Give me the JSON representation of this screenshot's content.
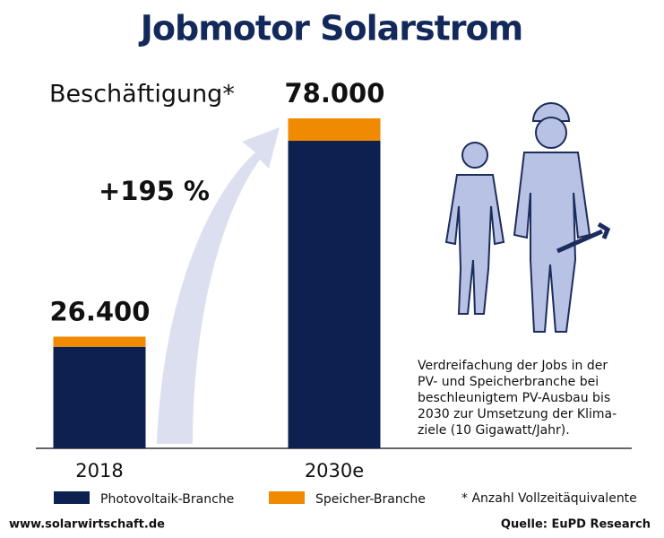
{
  "chart_data": {
    "type": "stacked-bar",
    "title": "Jobmotor Solarstrom",
    "subtitle": "Beschäftigung*",
    "annotation": "+195 %",
    "categories": [
      "2018",
      "2030e"
    ],
    "series": [
      {
        "name": "Photovoltaik-Branche",
        "color": "#0c2150",
        "values": [
          24000,
          72700
        ]
      },
      {
        "name": "Speicher-Branche",
        "color": "#f08a00",
        "values": [
          2400,
          5300
        ]
      }
    ],
    "totals": {
      "values": [
        26400,
        78000
      ],
      "value_labels": [
        "26.400",
        "78.000"
      ]
    },
    "note": [
      "Verdreifachung der Jobs in der",
      "PV- und Speicherbranche bei",
      "beschleunigtem PV-Ausbau bis",
      "2030 zur Umsetzung der Klima-",
      "ziele (10 Gigawatt/Jahr)."
    ],
    "footnote": "* Anzahl Vollzeitäquivalente",
    "website": "www.solarwirtschaft.de",
    "source": "Quelle: EuPD Research"
  }
}
